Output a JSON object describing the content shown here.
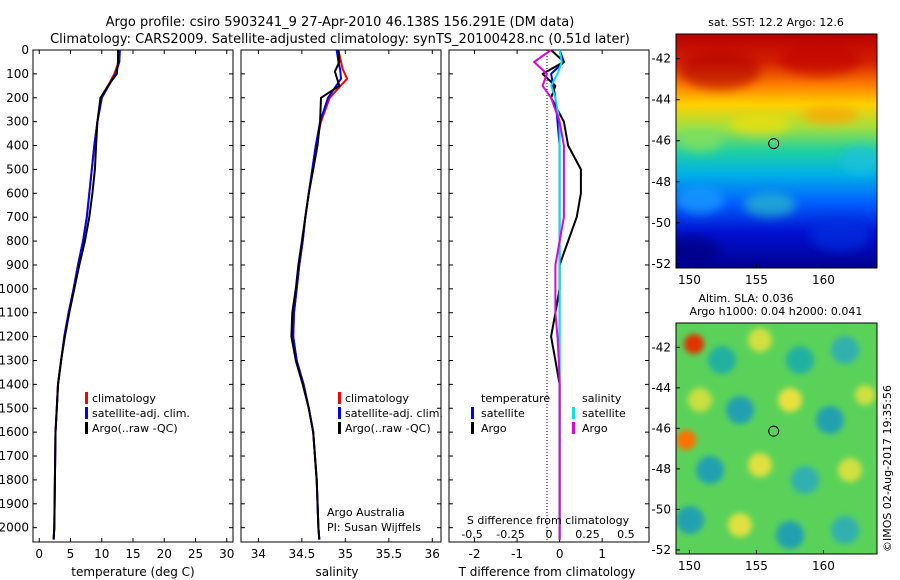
{
  "header": {
    "title_line1": "Argo profile: csiro 5903241_9 27-Apr-2010 46.138S 156.291E (DM data)",
    "title_line2": "Climatology: CARS2009. Satellite-adjusted climatology: synTS_20100428.nc (0.51d later)"
  },
  "colors": {
    "climatology": "#ff0000",
    "satellite": "#0000ff",
    "argo": "#000000",
    "salinity_satellite": "#00e5e5",
    "salinity_argo": "#e000e0"
  },
  "depth_ticks": [
    "0",
    "100",
    "200",
    "300",
    "400",
    "500",
    "600",
    "700",
    "800",
    "900",
    "1000",
    "1100",
    "1200",
    "1300",
    "1400",
    "1500",
    "1600",
    "1700",
    "1800",
    "1900",
    "2000"
  ],
  "chart_data": [
    {
      "type": "line",
      "id": "temperature",
      "xlabel": "temperature (deg C)",
      "xlim": [
        -1,
        31
      ],
      "ylim": [
        2060,
        0
      ],
      "xticks": [
        "0",
        "5",
        "10",
        "15",
        "20",
        "25",
        "30"
      ],
      "legend": [
        "climatology",
        "satellite-adj. clim.",
        "Argo(..raw -QC)"
      ],
      "series": [
        {
          "name": "climatology",
          "color_key": "climatology",
          "x": [
            12.8,
            12.7,
            12.0,
            11.0,
            10.0,
            9.3,
            8.8,
            8.4,
            8.0,
            7.6,
            7.0,
            6.2,
            5.5,
            4.7,
            4.0,
            3.5,
            3.0,
            2.8,
            2.6,
            2.5,
            2.4,
            2.3
          ],
          "y": [
            0,
            50,
            100,
            150,
            200,
            300,
            400,
            500,
            600,
            700,
            800,
            900,
            1000,
            1100,
            1200,
            1300,
            1400,
            1500,
            1600,
            1800,
            2000,
            2050
          ]
        },
        {
          "name": "satellite-adj. clim.",
          "color_key": "satellite",
          "x": [
            12.9,
            12.8,
            12.2,
            11.1,
            10.0,
            9.3,
            8.8,
            8.4,
            8.0,
            7.6,
            7.0,
            6.2,
            5.5,
            4.7,
            4.0,
            3.5,
            3.0,
            2.8,
            2.6,
            2.5,
            2.4,
            2.3
          ],
          "y": [
            0,
            50,
            100,
            150,
            200,
            300,
            400,
            500,
            600,
            700,
            800,
            900,
            1000,
            1100,
            1200,
            1300,
            1400,
            1500,
            1600,
            1800,
            2000,
            2050
          ]
        },
        {
          "name": "Argo(..raw -QC)",
          "color_key": "argo",
          "x": [
            12.6,
            12.6,
            12.4,
            11.0,
            9.8,
            9.3,
            9.1,
            8.9,
            8.5,
            8.0,
            7.3,
            6.4,
            5.6,
            4.8,
            4.1,
            3.5,
            3.0,
            2.8,
            2.6,
            2.5,
            2.4,
            2.3
          ],
          "y": [
            0,
            50,
            100,
            150,
            200,
            300,
            400,
            500,
            600,
            700,
            800,
            900,
            1000,
            1100,
            1200,
            1300,
            1400,
            1500,
            1600,
            1800,
            2000,
            2050
          ]
        }
      ]
    },
    {
      "type": "line",
      "id": "salinity",
      "xlabel": "salinity",
      "xlim": [
        33.8,
        36.1
      ],
      "ylim": [
        2060,
        0
      ],
      "xticks": [
        "34",
        "34.5",
        "35",
        "35.5",
        "36"
      ],
      "legend": [
        "climatology",
        "satellite-adj. clim.",
        "Argo(..raw -QC)"
      ],
      "annotation": [
        "Argo Australia",
        "PI: Susan Wijffels"
      ],
      "series": [
        {
          "name": "climatology",
          "color_key": "climatology",
          "x": [
            34.92,
            34.95,
            34.97,
            35.02,
            34.82,
            34.72,
            34.66,
            34.62,
            34.58,
            34.54,
            34.51,
            34.47,
            34.44,
            34.41,
            34.4,
            34.44,
            34.52,
            34.58,
            34.63,
            34.67,
            34.69,
            34.7
          ],
          "y": [
            0,
            50,
            80,
            120,
            200,
            300,
            400,
            500,
            600,
            700,
            800,
            900,
            1000,
            1100,
            1200,
            1300,
            1400,
            1500,
            1600,
            1800,
            2000,
            2050
          ]
        },
        {
          "name": "satellite-adj. clim.",
          "color_key": "satellite",
          "x": [
            34.9,
            34.92,
            34.94,
            34.95,
            34.8,
            34.71,
            34.66,
            34.62,
            34.58,
            34.54,
            34.51,
            34.47,
            34.44,
            34.41,
            34.4,
            34.44,
            34.52,
            34.58,
            34.63,
            34.67,
            34.69,
            34.7
          ],
          "y": [
            0,
            50,
            80,
            120,
            200,
            300,
            400,
            500,
            600,
            700,
            800,
            900,
            1000,
            1100,
            1200,
            1300,
            1400,
            1500,
            1600,
            1800,
            2000,
            2050
          ]
        },
        {
          "name": "Argo(..raw -QC)",
          "color_key": "argo",
          "x": [
            34.92,
            34.93,
            34.88,
            34.93,
            34.72,
            34.71,
            34.68,
            34.63,
            34.58,
            34.54,
            34.5,
            34.46,
            34.43,
            34.39,
            34.38,
            34.43,
            34.51,
            34.58,
            34.63,
            34.67,
            34.69,
            34.7
          ],
          "y": [
            0,
            50,
            90,
            150,
            200,
            300,
            400,
            500,
            600,
            700,
            800,
            900,
            1000,
            1100,
            1200,
            1300,
            1400,
            1500,
            1600,
            1800,
            2000,
            2050
          ]
        }
      ]
    },
    {
      "type": "line",
      "id": "differences",
      "xlabel": "T difference from climatology",
      "xlabel_top": "S difference from climatology",
      "xlim": [
        -2.6,
        2.1
      ],
      "ylim": [
        2060,
        0
      ],
      "xticks": [
        "-2",
        "-1",
        "0",
        "1"
      ],
      "xticks_top": [
        "-0.5",
        "-0.25",
        "0",
        "0.25",
        "0.5"
      ],
      "legend_left_title": "temperature",
      "legend_right_title": "salinity",
      "legend": [
        "satellite",
        "Argo",
        "satellite",
        "Argo"
      ],
      "series": [
        {
          "name": "satellite",
          "group": "temperature",
          "color_key": "satellite",
          "x": [
            0.0,
            0.1,
            -0.2,
            -0.15,
            -0.1,
            -0.05,
            0.0,
            0.0,
            0.0,
            0.0,
            0.0,
            0.0,
            0.0,
            0.0,
            0.0,
            0.0,
            0.0,
            0.0,
            0.0,
            0.0
          ],
          "y": [
            0,
            50,
            100,
            150,
            200,
            300,
            400,
            500,
            600,
            700,
            800,
            900,
            1000,
            1100,
            1200,
            1300,
            1400,
            1600,
            1800,
            2050
          ]
        },
        {
          "name": "Argo",
          "group": "temperature",
          "color_key": "argo",
          "x": [
            -0.2,
            0.1,
            -0.4,
            -0.1,
            -0.2,
            0.1,
            0.2,
            0.5,
            0.5,
            0.4,
            0.2,
            0.0,
            0.0,
            -0.1,
            -0.2,
            -0.1,
            0.0,
            0.0,
            0.0,
            0.0
          ],
          "y": [
            0,
            50,
            100,
            150,
            200,
            300,
            400,
            500,
            600,
            700,
            800,
            900,
            1000,
            1100,
            1200,
            1300,
            1400,
            1600,
            1800,
            2050
          ]
        },
        {
          "name": "satellite",
          "group": "salinity",
          "color_key": "salinity_satellite",
          "x": [
            0.0,
            0.05,
            -0.05,
            -0.2,
            -0.1,
            0.0,
            0.0,
            0.0,
            0.0,
            0.0,
            0.0,
            0.0,
            0.0,
            0.0,
            0.0,
            0.0,
            0.0,
            0.0,
            0.0,
            0.0
          ],
          "y": [
            0,
            50,
            100,
            150,
            200,
            300,
            400,
            500,
            600,
            700,
            800,
            900,
            1000,
            1100,
            1200,
            1300,
            1400,
            1600,
            1800,
            2050
          ]
        },
        {
          "name": "Argo",
          "group": "salinity",
          "color_key": "salinity_argo",
          "x": [
            -0.2,
            -0.6,
            -0.3,
            -0.4,
            -0.2,
            0.0,
            0.1,
            0.1,
            0.1,
            0.1,
            0.0,
            -0.1,
            -0.1,
            -0.1,
            -0.05,
            -0.02,
            0.0,
            0.0,
            0.0,
            0.0
          ],
          "y": [
            0,
            50,
            100,
            150,
            200,
            300,
            400,
            500,
            600,
            700,
            800,
            900,
            1000,
            1100,
            1200,
            1300,
            1400,
            1600,
            1800,
            2050
          ]
        }
      ]
    },
    {
      "type": "heatmap",
      "id": "sst_map",
      "title": "sat. SST: 12.2  Argo: 12.6",
      "xlim": [
        149,
        164
      ],
      "ylim": [
        -52.2,
        -40.8
      ],
      "xticks": [
        "150",
        "155",
        "160"
      ],
      "yticks": [
        "-42",
        "-44",
        "-46",
        "-48",
        "-50",
        "-52"
      ],
      "marker": {
        "lon": 156.291,
        "lat": -46.138
      }
    },
    {
      "type": "heatmap",
      "id": "sla_map",
      "title_line1": "Altim. SLA: 0.036",
      "title_line2": "Argo h1000: 0.04  h2000: 0.041",
      "xlim": [
        149,
        164
      ],
      "ylim": [
        -52.2,
        -40.8
      ],
      "xticks": [
        "150",
        "155",
        "160"
      ],
      "yticks": [
        "-42",
        "-44",
        "-46",
        "-48",
        "-50",
        "-52"
      ],
      "marker": {
        "lon": 156.291,
        "lat": -46.138
      }
    }
  ],
  "footer": {
    "credit": "©IMOS 02-Aug-2017 19:35:56"
  }
}
